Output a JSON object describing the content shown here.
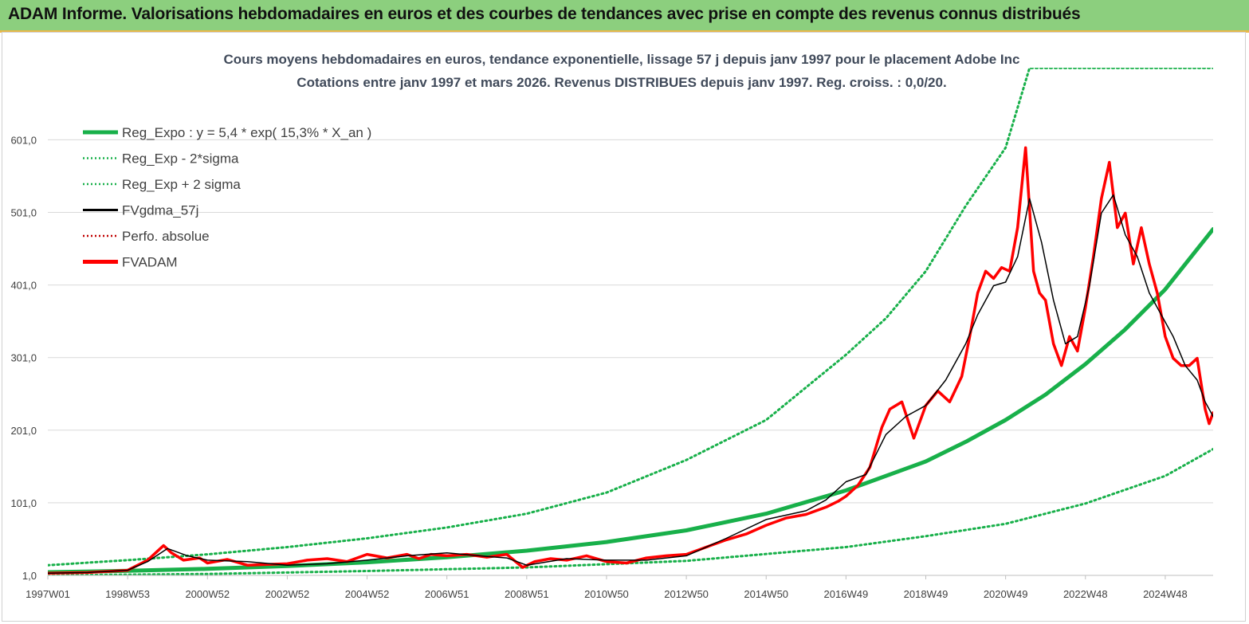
{
  "banner": {
    "title": "ADAM Informe. Valorisations hebdomadaires en euros et des courbes de tendances avec prise en compte des revenus connus distribués"
  },
  "colors": {
    "banner_bg": "#8ccf7e",
    "banner_border": "#e8b84a",
    "trend_green": "#18b04a",
    "price_red": "#ff0000",
    "smooth_black": "#000000",
    "grid": "#d9d9d9"
  },
  "chart_data": {
    "type": "line",
    "title_line1": "Cours moyens hebdomadaires en euros, tendance exponentielle, lissage 57 j depuis janv 1997 pour le placement Adobe Inc",
    "title_line2": "Cotations entre janv 1997 et mars 2026. Revenus DISTRIBUES depuis janv 1997. Reg. croiss. : 0,0/20.",
    "xlabel": "",
    "ylabel": "",
    "y_ticks": [
      "1,0",
      "101,0",
      "201,0",
      "301,0",
      "401,0",
      "501,0",
      "601,0"
    ],
    "y_tick_values": [
      1,
      101,
      201,
      301,
      401,
      501,
      601
    ],
    "ylim": [
      1,
      670
    ],
    "x_ticks": [
      "1997W01",
      "1998W53",
      "2000W52",
      "2002W52",
      "2004W52",
      "2006W51",
      "2008W51",
      "2010W50",
      "2012W50",
      "2014W50",
      "2016W49",
      "2018W49",
      "2020W49",
      "2022W48",
      "2024W48"
    ],
    "x_tick_years": [
      1997.0,
      1999.0,
      2001.0,
      2003.0,
      2005.0,
      2007.0,
      2009.0,
      2011.0,
      2013.0,
      2015.0,
      2017.0,
      2019.0,
      2021.0,
      2023.0,
      2025.0
    ],
    "xlim": [
      1997.0,
      2026.2
    ],
    "grid": "horizontal",
    "legend_position": "top-left",
    "legend": [
      {
        "label": "Reg_Expo : y = 5,4 * exp( 15,3% *  X_an )",
        "style": "solid-thick",
        "color": "#18b04a"
      },
      {
        "label": "Reg_Exp - 2*sigma",
        "style": "dotted",
        "color": "#18b04a"
      },
      {
        "label": "Reg_Exp + 2 sigma",
        "style": "dotted",
        "color": "#18b04a"
      },
      {
        "label": "FVgdma_57j",
        "style": "solid",
        "color": "#000000"
      },
      {
        "label": "Perfo. absolue",
        "style": "dotted",
        "color": "#c00000"
      },
      {
        "label": "FVADAM",
        "style": "solid-thick",
        "color": "#ff0000"
      }
    ],
    "series": [
      {
        "name": "Reg_Expo : y = 5,4 * exp( 15,3% *  X_an )",
        "x": [
          1997.0,
          1999.0,
          2001.0,
          2003.0,
          2005.0,
          2007.0,
          2009.0,
          2011.0,
          2013.0,
          2015.0,
          2017.0,
          2019.0,
          2020.0,
          2021.0,
          2022.0,
          2023.0,
          2024.0,
          2025.0,
          2026.2
        ],
        "values": [
          5.4,
          7.3,
          10,
          14,
          19,
          26,
          35,
          47,
          63,
          86,
          118,
          158,
          185,
          215,
          250,
          292,
          340,
          395,
          478
        ]
      },
      {
        "name": "Reg_Exp - 2*sigma",
        "x": [
          1997.0,
          2001.0,
          2005.0,
          2009.0,
          2013.0,
          2017.0,
          2019.0,
          2021.0,
          2023.0,
          2025.0,
          2026.2
        ],
        "values": [
          1,
          3,
          7,
          12,
          21,
          40,
          55,
          72,
          100,
          138,
          175
        ]
      },
      {
        "name": "Reg_Exp + 2 sigma",
        "x": [
          1997.0,
          1999.0,
          2001.0,
          2003.0,
          2005.0,
          2007.0,
          2009.0,
          2011.0,
          2013.0,
          2015.0,
          2017.0,
          2018.0,
          2019.0,
          2020.0,
          2021.0,
          2021.6,
          2026.2
        ],
        "values": [
          15,
          22,
          30,
          40,
          52,
          67,
          86,
          115,
          160,
          215,
          305,
          355,
          420,
          510,
          590,
          700,
          700
        ]
      },
      {
        "name": "FVgdma_57j",
        "x": [
          1997.0,
          1998.0,
          1999.0,
          1999.5,
          2000.0,
          2000.5,
          2001.0,
          2002.0,
          2003.0,
          2004.0,
          2005.0,
          2006.0,
          2007.0,
          2008.0,
          2008.5,
          2009.0,
          2010.0,
          2011.0,
          2012.0,
          2013.0,
          2014.0,
          2015.0,
          2016.0,
          2016.5,
          2017.0,
          2017.5,
          2018.0,
          2018.5,
          2019.0,
          2019.5,
          2020.0,
          2020.3,
          2020.7,
          2021.0,
          2021.3,
          2021.6,
          2021.9,
          2022.2,
          2022.5,
          2022.8,
          2023.1,
          2023.4,
          2023.7,
          2024.0,
          2024.3,
          2024.6,
          2024.9,
          2025.2,
          2025.5,
          2025.8,
          2026.0,
          2026.2
        ],
        "values": [
          4,
          5,
          8,
          20,
          38,
          28,
          22,
          20,
          15,
          17,
          22,
          28,
          32,
          27,
          25,
          15,
          24,
          22,
          22,
          28,
          52,
          78,
          90,
          105,
          130,
          140,
          195,
          220,
          235,
          270,
          320,
          360,
          400,
          405,
          440,
          520,
          460,
          380,
          320,
          330,
          400,
          500,
          525,
          470,
          440,
          390,
          360,
          330,
          290,
          270,
          240,
          220
        ]
      },
      {
        "name": "FVADAM",
        "x": [
          1997.0,
          1998.0,
          1999.0,
          1999.5,
          1999.9,
          2000.1,
          2000.4,
          2000.8,
          2001.0,
          2001.5,
          2002.0,
          2002.5,
          2003.0,
          2003.5,
          2004.0,
          2004.5,
          2005.0,
          2005.5,
          2006.0,
          2006.3,
          2006.6,
          2007.0,
          2007.5,
          2008.0,
          2008.5,
          2008.9,
          2009.2,
          2009.6,
          2010.0,
          2010.5,
          2011.0,
          2011.5,
          2012.0,
          2012.5,
          2013.0,
          2013.5,
          2014.0,
          2014.5,
          2015.0,
          2015.5,
          2016.0,
          2016.5,
          2016.8,
          2017.0,
          2017.3,
          2017.6,
          2017.9,
          2018.1,
          2018.4,
          2018.7,
          2019.0,
          2019.3,
          2019.6,
          2019.9,
          2020.1,
          2020.3,
          2020.5,
          2020.7,
          2020.9,
          2021.1,
          2021.3,
          2021.5,
          2021.7,
          2021.85,
          2022.0,
          2022.2,
          2022.4,
          2022.6,
          2022.8,
          2023.0,
          2023.2,
          2023.4,
          2023.6,
          2023.8,
          2024.0,
          2024.2,
          2024.4,
          2024.6,
          2024.8,
          2025.0,
          2025.2,
          2025.4,
          2025.6,
          2025.8,
          2026.0,
          2026.1,
          2026.2
        ],
        "values": [
          4,
          5,
          8,
          22,
          42,
          32,
          22,
          25,
          18,
          23,
          15,
          16,
          17,
          22,
          24,
          20,
          30,
          25,
          30,
          24,
          30,
          28,
          30,
          26,
          30,
          12,
          20,
          24,
          22,
          28,
          20,
          18,
          25,
          28,
          30,
          40,
          50,
          58,
          70,
          80,
          85,
          95,
          103,
          110,
          125,
          150,
          205,
          230,
          240,
          190,
          235,
          255,
          240,
          275,
          330,
          390,
          420,
          410,
          425,
          420,
          480,
          590,
          420,
          390,
          380,
          320,
          290,
          330,
          310,
          370,
          440,
          520,
          570,
          480,
          500,
          430,
          480,
          430,
          390,
          330,
          300,
          290,
          290,
          300,
          230,
          210,
          225
        ]
      }
    ]
  }
}
